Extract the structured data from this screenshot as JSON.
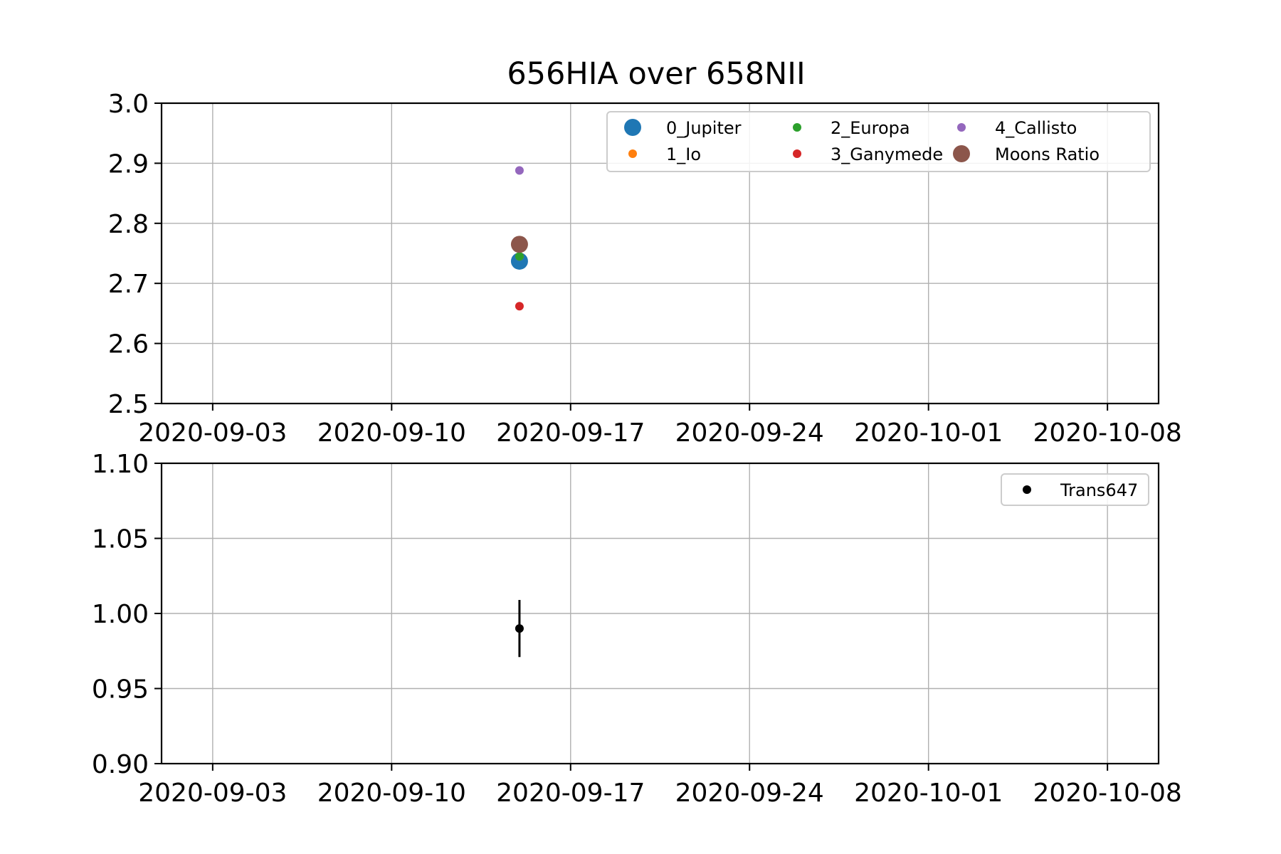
{
  "chart_data": [
    {
      "type": "scatter",
      "title": "656HIA over 658NII",
      "xlabel": "",
      "ylabel": "",
      "x_ticks": [
        "2020-09-03",
        "2020-09-10",
        "2020-09-17",
        "2020-09-24",
        "2020-10-01",
        "2020-10-08"
      ],
      "xlim": [
        "2020-09-01",
        "2020-10-10"
      ],
      "ylim": [
        2.5,
        3.0
      ],
      "y_ticks": [
        "2.5",
        "2.6",
        "2.7",
        "2.8",
        "2.9",
        "3.0"
      ],
      "grid": true,
      "legend_position": "top-right",
      "legend_columns": 3,
      "series": [
        {
          "name": "0_Jupiter",
          "color": "#1f77b4",
          "marker_size": "large",
          "points": [
            {
              "x": "2020-09-15",
              "y": 2.737
            }
          ]
        },
        {
          "name": "1_Io",
          "color": "#ff7f0e",
          "marker_size": "small",
          "points": [
            {
              "x": "2020-09-15",
              "y": 2.745
            }
          ]
        },
        {
          "name": "2_Europa",
          "color": "#2ca02c",
          "marker_size": "small",
          "points": [
            {
              "x": "2020-09-15",
              "y": 2.745
            }
          ]
        },
        {
          "name": "3_Ganymede",
          "color": "#d62728",
          "marker_size": "small",
          "points": [
            {
              "x": "2020-09-15",
              "y": 2.662
            }
          ]
        },
        {
          "name": "4_Callisto",
          "color": "#9467bd",
          "marker_size": "small",
          "points": [
            {
              "x": "2020-09-15",
              "y": 2.888
            }
          ]
        },
        {
          "name": "Moons Ratio",
          "color": "#8c564b",
          "marker_size": "large",
          "points": [
            {
              "x": "2020-09-15",
              "y": 2.765
            }
          ]
        }
      ]
    },
    {
      "type": "scatter",
      "title": "",
      "xlabel": "",
      "ylabel": "",
      "x_ticks": [
        "2020-09-03",
        "2020-09-10",
        "2020-09-17",
        "2020-09-24",
        "2020-10-01",
        "2020-10-08"
      ],
      "xlim": [
        "2020-09-01",
        "2020-10-10"
      ],
      "ylim": [
        0.9,
        1.1
      ],
      "y_ticks": [
        "0.90",
        "0.95",
        "1.00",
        "1.05",
        "1.10"
      ],
      "grid": true,
      "legend_position": "top-right",
      "legend_columns": 1,
      "series": [
        {
          "name": "Trans647",
          "color": "#000000",
          "marker_size": "small",
          "error_bars": true,
          "points": [
            {
              "x": "2020-09-15",
              "y": 0.99,
              "yerr": 0.019
            }
          ]
        }
      ]
    }
  ]
}
